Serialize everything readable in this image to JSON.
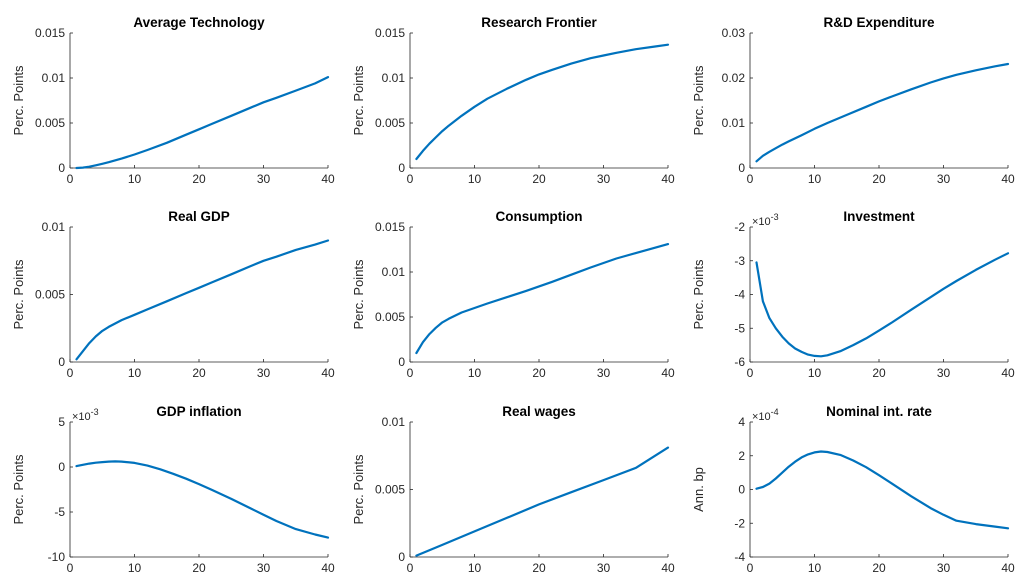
{
  "colors": {
    "series": "#0072BD",
    "axis": "#262626"
  },
  "chart_data": [
    {
      "type": "line",
      "title": "Average Technology",
      "ylabel": "Perc. Points",
      "xlim": [
        0,
        40
      ],
      "xticks": [
        0,
        10,
        20,
        30,
        40
      ],
      "xtick_labels": [
        "0",
        "10",
        "20",
        "30",
        "40"
      ],
      "ylim": [
        0,
        0.015
      ],
      "yticks": [
        0,
        0.005,
        0.01,
        0.015
      ],
      "ytick_labels": [
        "0",
        "0.005",
        "0.01",
        "0.015"
      ],
      "exponent_label": "",
      "series": [
        {
          "x": [
            1,
            2,
            3,
            4,
            5,
            6,
            8,
            10,
            12,
            15,
            18,
            20,
            22,
            25,
            28,
            30,
            32,
            35,
            38,
            40
          ],
          "y": [
            0,
            5e-05,
            0.00015,
            0.0003,
            0.00047,
            0.00065,
            0.00105,
            0.0015,
            0.002,
            0.0028,
            0.0037,
            0.0043,
            0.0049,
            0.0058,
            0.0067,
            0.0073,
            0.0078,
            0.0086,
            0.0094,
            0.0101
          ]
        }
      ]
    },
    {
      "type": "line",
      "title": "Research Frontier",
      "ylabel": "Perc. Points",
      "xlim": [
        0,
        40
      ],
      "xticks": [
        0,
        10,
        20,
        30,
        40
      ],
      "xtick_labels": [
        "0",
        "10",
        "20",
        "30",
        "40"
      ],
      "ylim": [
        0,
        0.015
      ],
      "yticks": [
        0,
        0.005,
        0.01,
        0.015
      ],
      "ytick_labels": [
        "0",
        "0.005",
        "0.01",
        "0.015"
      ],
      "exponent_label": "",
      "series": [
        {
          "x": [
            1,
            2,
            3,
            4,
            5,
            6,
            8,
            10,
            12,
            15,
            18,
            20,
            22,
            25,
            28,
            30,
            32,
            35,
            38,
            40
          ],
          "y": [
            0.001,
            0.0019,
            0.0027,
            0.0034,
            0.0041,
            0.0047,
            0.0058,
            0.0068,
            0.0077,
            0.0088,
            0.0098,
            0.0104,
            0.0109,
            0.0116,
            0.0122,
            0.0125,
            0.0128,
            0.0132,
            0.0135,
            0.0137
          ]
        }
      ]
    },
    {
      "type": "line",
      "title": "R&D Expenditure",
      "ylabel": "Perc. Points",
      "xlim": [
        0,
        40
      ],
      "xticks": [
        0,
        10,
        20,
        30,
        40
      ],
      "xtick_labels": [
        "0",
        "10",
        "20",
        "30",
        "40"
      ],
      "ylim": [
        0,
        0.03
      ],
      "yticks": [
        0,
        0.01,
        0.02,
        0.03
      ],
      "ytick_labels": [
        "0",
        "0.01",
        "0.02",
        "0.03"
      ],
      "exponent_label": "",
      "series": [
        {
          "x": [
            1,
            2,
            3,
            4,
            5,
            6,
            8,
            10,
            12,
            15,
            18,
            20,
            22,
            25,
            28,
            30,
            32,
            35,
            38,
            40
          ],
          "y": [
            0.0015,
            0.0027,
            0.0036,
            0.0044,
            0.0052,
            0.0059,
            0.0073,
            0.0087,
            0.01,
            0.0118,
            0.0136,
            0.0148,
            0.0159,
            0.0175,
            0.019,
            0.0199,
            0.0207,
            0.0217,
            0.0226,
            0.0231
          ]
        }
      ]
    },
    {
      "type": "line",
      "title": "Real GDP",
      "ylabel": "Perc. Points",
      "xlim": [
        0,
        40
      ],
      "xticks": [
        0,
        10,
        20,
        30,
        40
      ],
      "xtick_labels": [
        "0",
        "10",
        "20",
        "30",
        "40"
      ],
      "ylim": [
        0,
        0.01
      ],
      "yticks": [
        0,
        0.005,
        0.01
      ],
      "ytick_labels": [
        "0",
        "0.005",
        "0.01"
      ],
      "exponent_label": "",
      "series": [
        {
          "x": [
            1,
            2,
            3,
            4,
            5,
            6,
            8,
            10,
            12,
            15,
            18,
            20,
            22,
            25,
            28,
            30,
            32,
            35,
            38,
            40
          ],
          "y": [
            0.0002,
            0.0008,
            0.0014,
            0.0019,
            0.0023,
            0.0026,
            0.0031,
            0.0035,
            0.0039,
            0.0045,
            0.0051,
            0.0055,
            0.0059,
            0.0065,
            0.0071,
            0.0075,
            0.0078,
            0.0083,
            0.0087,
            0.009
          ]
        }
      ]
    },
    {
      "type": "line",
      "title": "Consumption",
      "ylabel": "Perc. Points",
      "xlim": [
        0,
        40
      ],
      "xticks": [
        0,
        10,
        20,
        30,
        40
      ],
      "xtick_labels": [
        "0",
        "10",
        "20",
        "30",
        "40"
      ],
      "ylim": [
        0,
        0.015
      ],
      "yticks": [
        0,
        0.005,
        0.01,
        0.015
      ],
      "ytick_labels": [
        "0",
        "0.005",
        "0.01",
        "0.015"
      ],
      "exponent_label": "",
      "series": [
        {
          "x": [
            1,
            2,
            3,
            4,
            5,
            6,
            8,
            10,
            12,
            15,
            18,
            20,
            22,
            25,
            28,
            30,
            32,
            35,
            38,
            40
          ],
          "y": [
            0.001,
            0.0022,
            0.0031,
            0.0038,
            0.0044,
            0.0048,
            0.0055,
            0.006,
            0.0065,
            0.0072,
            0.0079,
            0.0084,
            0.0089,
            0.0097,
            0.0105,
            0.011,
            0.0115,
            0.0121,
            0.0127,
            0.0131
          ]
        }
      ]
    },
    {
      "type": "line",
      "title": "Investment",
      "ylabel": "Perc. Points",
      "xlim": [
        0,
        40
      ],
      "xticks": [
        0,
        10,
        20,
        30,
        40
      ],
      "xtick_labels": [
        "0",
        "10",
        "20",
        "30",
        "40"
      ],
      "ylim": [
        -6,
        -2
      ],
      "yticks": [
        -6,
        -5,
        -4,
        -3,
        -2
      ],
      "ytick_labels": [
        "-6",
        "-5",
        "-4",
        "-3",
        "-2"
      ],
      "exponent_label": "×10",
      "exponent_power": "-3",
      "series": [
        {
          "x": [
            1,
            2,
            3,
            4,
            5,
            6,
            7,
            8,
            9,
            10,
            11,
            12,
            14,
            16,
            18,
            20,
            22,
            25,
            28,
            30,
            32,
            35,
            38,
            40
          ],
          "y": [
            -3.05,
            -4.2,
            -4.7,
            -5.0,
            -5.25,
            -5.45,
            -5.6,
            -5.7,
            -5.78,
            -5.82,
            -5.83,
            -5.8,
            -5.68,
            -5.5,
            -5.3,
            -5.07,
            -4.83,
            -4.45,
            -4.08,
            -3.83,
            -3.6,
            -3.27,
            -2.97,
            -2.78
          ]
        }
      ]
    },
    {
      "type": "line",
      "title": "GDP inflation",
      "ylabel": "Perc. Points",
      "xlim": [
        0,
        40
      ],
      "xticks": [
        0,
        10,
        20,
        30,
        40
      ],
      "xtick_labels": [
        "0",
        "10",
        "20",
        "30",
        "40"
      ],
      "ylim": [
        -10,
        5
      ],
      "yticks": [
        -10,
        -5,
        0,
        5
      ],
      "ytick_labels": [
        "-10",
        "-5",
        "0",
        "5"
      ],
      "exponent_label": "×10",
      "exponent_power": "-3",
      "series": [
        {
          "x": [
            1,
            2,
            3,
            4,
            5,
            6,
            7,
            8,
            10,
            12,
            14,
            16,
            18,
            20,
            22,
            25,
            28,
            30,
            32,
            35,
            38,
            40
          ],
          "y": [
            0.1,
            0.25,
            0.38,
            0.48,
            0.55,
            0.6,
            0.62,
            0.6,
            0.45,
            0.15,
            -0.25,
            -0.75,
            -1.3,
            -1.9,
            -2.55,
            -3.55,
            -4.6,
            -5.3,
            -6.0,
            -6.9,
            -7.5,
            -7.85
          ]
        }
      ]
    },
    {
      "type": "line",
      "title": "Real wages",
      "ylabel": "Perc. Points",
      "xlim": [
        0,
        40
      ],
      "xticks": [
        0,
        10,
        20,
        30,
        40
      ],
      "xtick_labels": [
        "0",
        "10",
        "20",
        "30",
        "40"
      ],
      "ylim": [
        0,
        0.01
      ],
      "yticks": [
        0,
        0.005,
        0.01
      ],
      "ytick_labels": [
        "0",
        "0.005",
        "0.01"
      ],
      "exponent_label": "",
      "series": [
        {
          "x": [
            1,
            5,
            10,
            15,
            20,
            25,
            30,
            35,
            40
          ],
          "y": [
            0.0001,
            0.0009,
            0.0019,
            0.0029,
            0.0039,
            0.0048,
            0.0057,
            0.0066,
            0.0081
          ]
        }
      ]
    },
    {
      "type": "line",
      "title": "Nominal int. rate",
      "ylabel": "Ann. bp",
      "xlim": [
        0,
        40
      ],
      "xticks": [
        0,
        10,
        20,
        30,
        40
      ],
      "xtick_labels": [
        "0",
        "10",
        "20",
        "30",
        "40"
      ],
      "ylim": [
        -4,
        4
      ],
      "yticks": [
        -4,
        -2,
        0,
        2,
        4
      ],
      "ytick_labels": [
        "-4",
        "-2",
        "0",
        "2",
        "4"
      ],
      "exponent_label": "×10",
      "exponent_power": "-4",
      "series": [
        {
          "x": [
            1,
            2,
            3,
            4,
            5,
            6,
            7,
            8,
            9,
            10,
            11,
            12,
            14,
            16,
            18,
            20,
            22,
            25,
            28,
            30,
            32,
            35,
            38,
            40
          ],
          "y": [
            0.05,
            0.15,
            0.35,
            0.65,
            1.0,
            1.35,
            1.65,
            1.9,
            2.08,
            2.2,
            2.25,
            2.22,
            2.05,
            1.72,
            1.32,
            0.85,
            0.35,
            -0.4,
            -1.1,
            -1.5,
            -1.85,
            -2.05,
            -2.2,
            -2.3
          ]
        }
      ]
    }
  ]
}
